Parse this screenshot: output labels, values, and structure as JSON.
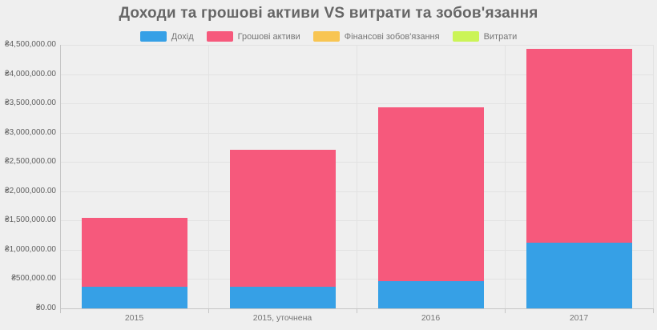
{
  "chart_data": {
    "type": "bar",
    "stacked": true,
    "title": "Доходи та грошові активи VS витрати та зобов'язання",
    "categories": [
      "2015",
      "2015, уточнена",
      "2016",
      "2017"
    ],
    "series": [
      {
        "name": "Дохід",
        "color": "#36a0e6",
        "values": [
          365000,
          365000,
          470000,
          1115000
        ]
      },
      {
        "name": "Грошові активи",
        "color": "#f6597c",
        "values": [
          1175000,
          2345000,
          2965000,
          3320000
        ]
      },
      {
        "name": "Фінансові зобов'язання",
        "color": "#f8c552",
        "values": [
          0,
          0,
          0,
          0
        ]
      },
      {
        "name": "Витрати",
        "color": "#cbf457",
        "values": [
          0,
          0,
          0,
          0
        ]
      }
    ],
    "stack_totals": [
      1540000,
      2710000,
      3435000,
      4435000
    ],
    "xlabel": "",
    "ylabel": "",
    "ylim": [
      0,
      4500000
    ],
    "ytick_step": 500000,
    "yaxis_labels": [
      "₴0.00",
      "₴500,000.00",
      "₴1,000,000.00",
      "₴1,500,000.00",
      "₴2,000,000.00",
      "₴2,500,000.00",
      "₴3,000,000.00",
      "₴3,500,000.00",
      "₴4,000,000.00",
      "₴4,500,000.00"
    ],
    "currency_symbol": "₴",
    "grid": true,
    "legend_position": "top",
    "colors": {
      "background": "#efefef",
      "gridline": "#e2e2e2",
      "axis": "#c6c6c6",
      "title_text": "#666666",
      "axis_text": "#5f5f5f",
      "category_text": "#757575",
      "legend_text": "#757575"
    }
  }
}
